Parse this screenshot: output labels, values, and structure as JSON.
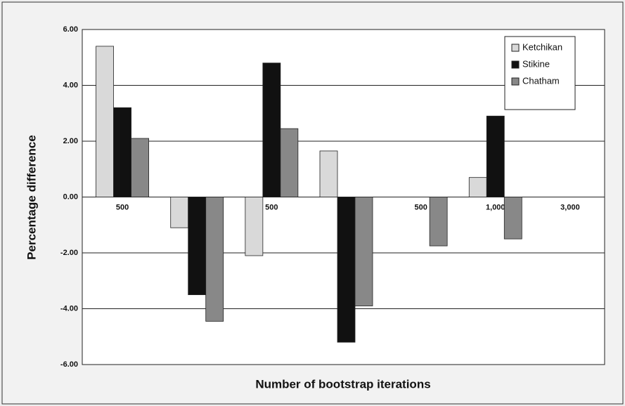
{
  "chart_data": {
    "type": "bar",
    "categories": [
      "500",
      null,
      "500",
      null,
      "500",
      "1,000",
      "3,000"
    ],
    "series": [
      {
        "name": "Ketchikan",
        "color": "#d9d9d9",
        "values": [
          5.4,
          -1.1,
          -2.1,
          1.65,
          null,
          0.7,
          null
        ]
      },
      {
        "name": "Stikine",
        "color": "#111111",
        "values": [
          3.2,
          -3.5,
          4.8,
          -5.2,
          null,
          2.9,
          null
        ]
      },
      {
        "name": "Chatham",
        "color": "#888888",
        "values": [
          2.1,
          -4.45,
          2.45,
          -3.9,
          -1.75,
          -1.5,
          null
        ]
      }
    ],
    "xlabel": "Number of bootstrap iterations",
    "ylabel": "Percentage difference",
    "ylim": [
      -6,
      6
    ],
    "yticks": [
      {
        "value": -6,
        "label": "-6.00"
      },
      {
        "value": -4,
        "label": "-4.00"
      },
      {
        "value": -2,
        "label": "-2.00"
      },
      {
        "value": 0,
        "label": "0.00"
      },
      {
        "value": 2,
        "label": "2.00"
      },
      {
        "value": 4,
        "label": "4.00"
      },
      {
        "value": 6,
        "label": "6.00"
      }
    ],
    "grid": true,
    "legend": "upper right"
  }
}
